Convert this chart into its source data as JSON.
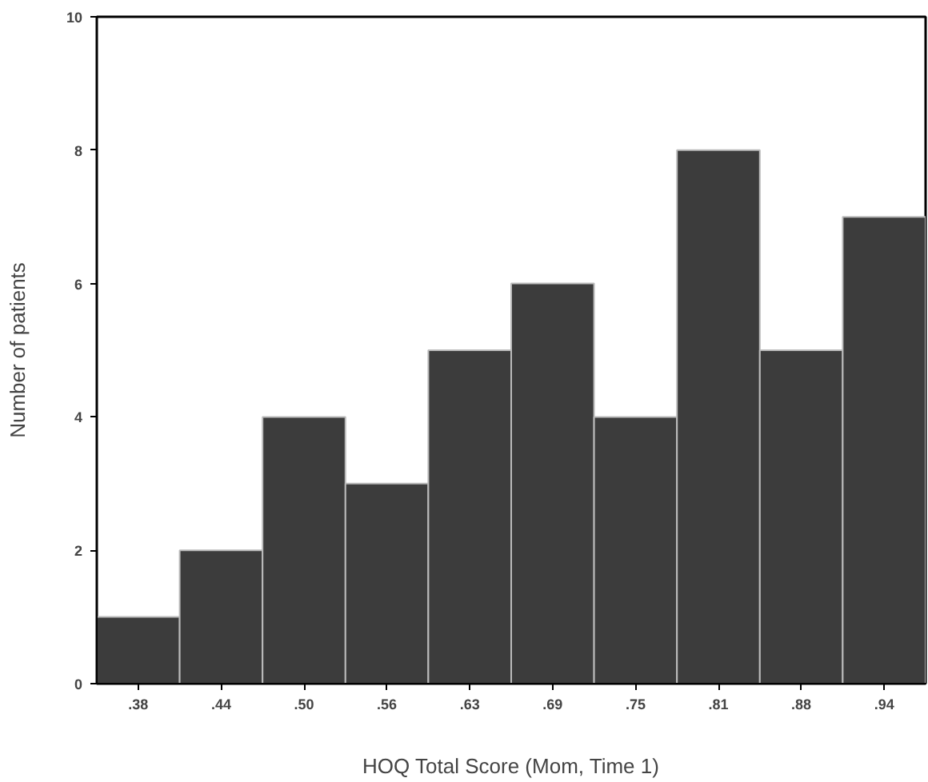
{
  "chart_data": {
    "type": "bar",
    "xlabel": "HOQ Total Score (Mom, Time 1)",
    "ylabel": "Number of patients",
    "categories": [
      ".38",
      ".44",
      ".50",
      ".56",
      ".63",
      ".69",
      ".75",
      ".81",
      ".88",
      ".94"
    ],
    "values": [
      1,
      2,
      4,
      3,
      5,
      6,
      4,
      8,
      5,
      7
    ],
    "color": "#3c3c3c",
    "ylim": [
      0,
      10
    ],
    "yticks": [
      0,
      2,
      4,
      6,
      8,
      10
    ],
    "grid": false
  }
}
